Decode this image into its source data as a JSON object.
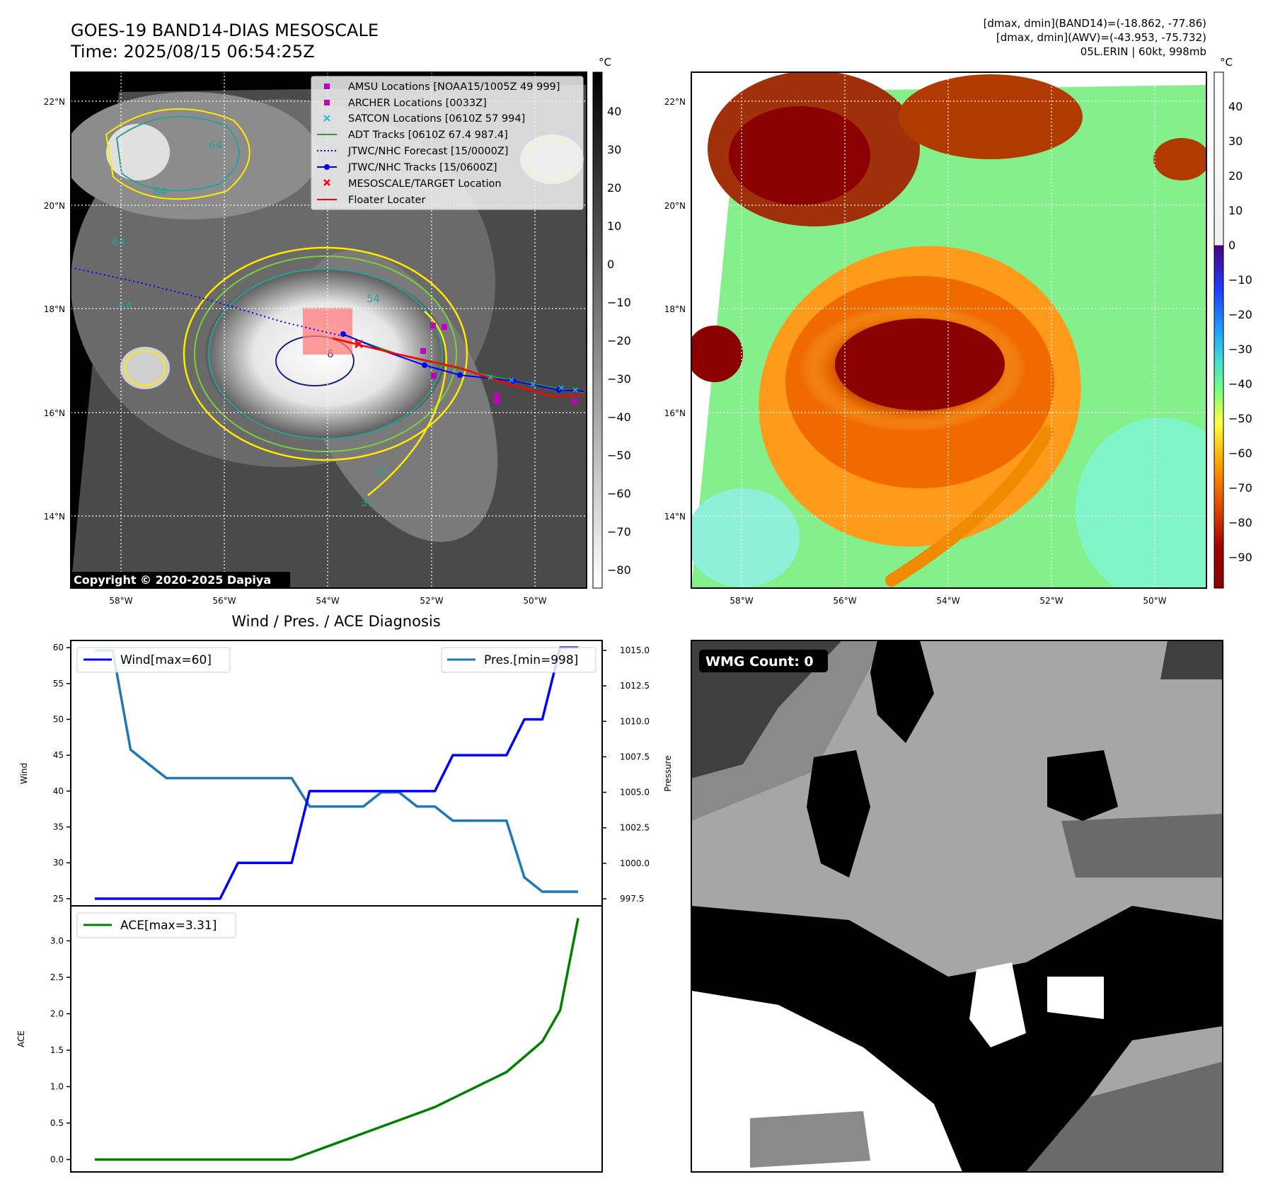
{
  "header": {
    "title": "GOES-19 BAND14-DIAS MESOSCALE",
    "time": "Time: 2025/08/15 06:54:25Z",
    "info_line1": "[dmax, dmin](BAND14)=(-18.862, -77.86)",
    "info_line2": "[dmax, dmin](AWV)=(-43.953, -75.732)",
    "info_line3": "05L.ERIN | 60kt, 998mb"
  },
  "map": {
    "lat_labels": [
      "22°N",
      "20°N",
      "18°N",
      "16°N",
      "14°N"
    ],
    "lon_labels": [
      "58°W",
      "56°W",
      "54°W",
      "52°W",
      "50°W"
    ],
    "copyright": "Copyright © 2020-2025 Dapiya",
    "contour_labels": [
      "64",
      "64",
      "64",
      "64",
      "54",
      "31",
      "31",
      "6"
    ],
    "legend": [
      {
        "label": "AMSU Locations [NOAA15/1005Z 49 999]",
        "symbol": "square",
        "color": "#bf00bf"
      },
      {
        "label": "ARCHER Locations [0033Z]",
        "symbol": "square",
        "color": "#bf00bf"
      },
      {
        "label": "SATCON Locations [0610Z 57 994]",
        "symbol": "x",
        "color": "#17becf"
      },
      {
        "label": "ADT Tracks [0610Z 67.4 987.4]",
        "symbol": "line",
        "color": "#2ca02c"
      },
      {
        "label": "JTWC/NHC Forecast [15/0000Z]",
        "symbol": "dotted",
        "color": "#0000ff"
      },
      {
        "label": "JTWC/NHC Tracks [15/0600Z]",
        "symbol": "line-dot",
        "color": "#0000ff"
      },
      {
        "label": "MESOSCALE/TARGET Location",
        "symbol": "x",
        "color": "#ff0000"
      },
      {
        "label": "Floater Locater",
        "symbol": "line",
        "color": "#ff0000"
      }
    ]
  },
  "colorbar_left": {
    "unit": "°C",
    "ticks": [
      "40",
      "30",
      "20",
      "10",
      "0",
      "−10",
      "−20",
      "−30",
      "−40",
      "−50",
      "−60",
      "−70",
      "−80"
    ]
  },
  "colorbar_right": {
    "unit": "°C",
    "ticks": [
      "40",
      "30",
      "20",
      "10",
      "0",
      "−10",
      "−20",
      "−30",
      "−40",
      "−50",
      "−60",
      "−70",
      "−80",
      "−90"
    ]
  },
  "wmg": {
    "label": "WMG Count: 0"
  },
  "chart_data": [
    {
      "type": "line",
      "title": "Wind / Pres. / ACE Diagnosis",
      "x": [
        0,
        1,
        2,
        3,
        4,
        5,
        6,
        7,
        8,
        9,
        10,
        11,
        12,
        13,
        14,
        15,
        16,
        17,
        18,
        19,
        20,
        21,
        22,
        23,
        24,
        25,
        26,
        27
      ],
      "series": [
        {
          "name": "Wind[max=60]",
          "axis": "left",
          "color": "#0000ff",
          "values": [
            25,
            25,
            25,
            25,
            25,
            25,
            25,
            25,
            30,
            30,
            30,
            30,
            40,
            40,
            40,
            40,
            40,
            40,
            40,
            40,
            45,
            45,
            45,
            45,
            50,
            50,
            60,
            60
          ]
        },
        {
          "name": "Pres.[min=998]",
          "axis": "right",
          "color": "#1f77b4",
          "values": [
            1015,
            1015,
            1008,
            1007,
            1006,
            1006,
            1006,
            1006,
            1006,
            1006,
            1006,
            1006,
            1004,
            1004,
            1004,
            1004,
            1005,
            1005,
            1004,
            1004,
            1003,
            1003,
            1003,
            1003,
            999,
            998,
            998,
            998
          ]
        }
      ],
      "ylabel": "Wind",
      "y2label": "Pressure",
      "ylim": [
        24,
        61
      ],
      "y2lim": [
        997.0,
        1015.7
      ],
      "yticks": [
        "25",
        "30",
        "35",
        "40",
        "45",
        "50",
        "55",
        "60"
      ],
      "y2ticks": [
        "997.5",
        "1000.0",
        "1002.5",
        "1005.0",
        "1007.5",
        "1010.0",
        "1012.5",
        "1015.0"
      ]
    },
    {
      "type": "line",
      "x": [
        0,
        1,
        2,
        3,
        4,
        5,
        6,
        7,
        8,
        9,
        10,
        11,
        12,
        13,
        14,
        15,
        16,
        17,
        18,
        19,
        20,
        21,
        22,
        23,
        24,
        25,
        26,
        27
      ],
      "series": [
        {
          "name": "ACE[max=3.31]",
          "color": "#008000",
          "values": [
            0,
            0,
            0,
            0,
            0,
            0,
            0,
            0,
            0,
            0,
            0,
            0,
            0.09,
            0.18,
            0.27,
            0.36,
            0.45,
            0.54,
            0.63,
            0.72,
            0.84,
            0.96,
            1.08,
            1.2,
            1.41,
            1.62,
            2.05,
            3.31
          ]
        }
      ],
      "ylabel": "ACE",
      "ylim": [
        -0.17,
        3.48
      ],
      "yticks": [
        "0.0",
        "0.5",
        "1.0",
        "1.5",
        "2.0",
        "2.5",
        "3.0"
      ]
    }
  ]
}
